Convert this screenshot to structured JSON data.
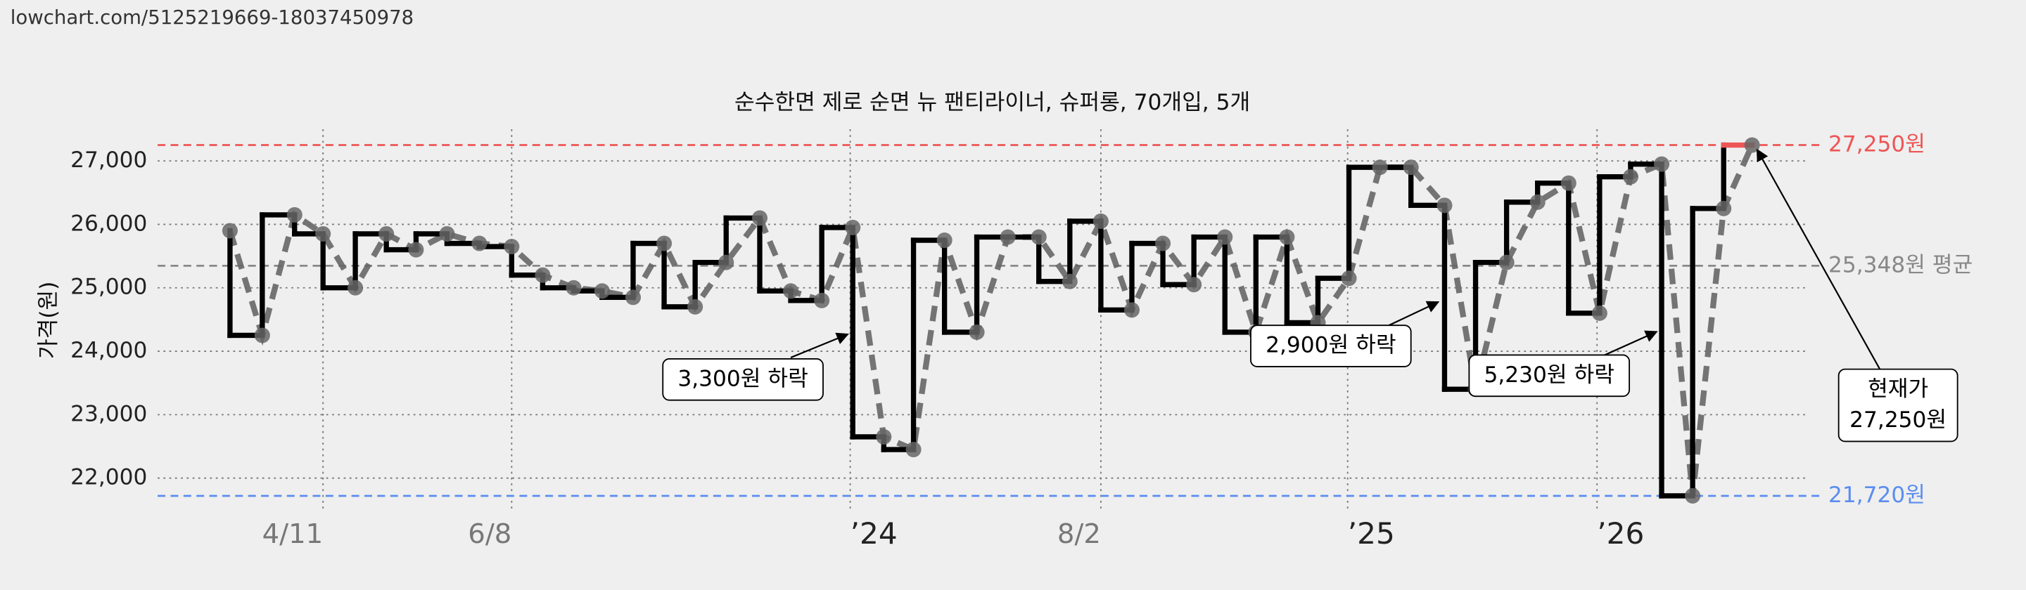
{
  "header": {
    "url": "lowchart.com/5125219669-18037450978"
  },
  "chart_data": {
    "type": "step-line",
    "title": "순수한면 제로 순면 뉴 팬티라이너, 슈퍼롱, 70개입, 5개",
    "y_label": "가격(원)",
    "x": [
      178,
      203,
      228,
      250,
      275,
      299,
      322,
      346,
      371,
      396,
      420,
      444,
      466,
      490,
      514,
      538,
      562,
      588,
      612,
      636,
      660,
      684,
      707,
      731,
      756,
      780,
      804,
      828,
      852,
      876,
      900,
      924,
      948,
      972,
      996,
      1020,
      1044,
      1068,
      1092,
      1118,
      1142,
      1166,
      1190,
      1214,
      1238,
      1262,
      1286,
      1310,
      1334,
      1356
    ],
    "series": [
      {
        "color": "#000000",
        "values": [
          25900,
          24250,
          26150,
          25850,
          25000,
          25850,
          25600,
          25850,
          25700,
          25650,
          25200,
          25000,
          24950,
          24850,
          25700,
          24700,
          25400,
          26100,
          24950,
          24800,
          25950,
          22650,
          22450,
          25750,
          24300,
          25800,
          25800,
          25100,
          26050,
          24650,
          25700,
          25050,
          25800,
          24300,
          25800,
          24450,
          25150,
          26900,
          26900,
          26300,
          23400,
          25400,
          26350,
          26650,
          24600,
          26750,
          26950,
          21720,
          26250,
          27250
        ]
      }
    ],
    "xlim": [
      122,
      1400
    ],
    "xticks": [
      {
        "value": 250,
        "label": "4/11"
      },
      {
        "value": 396,
        "label": "6/8"
      },
      {
        "value": 658,
        "label": "’24"
      },
      {
        "value": 852,
        "label": "8/2"
      },
      {
        "value": 1043,
        "label": "’25"
      },
      {
        "value": 1236,
        "label": "’26"
      }
    ],
    "ylim": [
      21500,
      27500
    ],
    "yticks": [
      {
        "value": 22000,
        "label": "22,000"
      },
      {
        "value": 23000,
        "label": "23,000"
      },
      {
        "value": 24000,
        "label": "24,000"
      },
      {
        "value": 25000,
        "label": "25,000"
      },
      {
        "value": 26000,
        "label": "26,000"
      },
      {
        "value": 27000,
        "label": "27,000"
      }
    ],
    "grid": true,
    "reference_lines": [
      {
        "value": 27250,
        "label": "27,250원",
        "color": "#ee5555"
      },
      {
        "value": 25348,
        "label": "25,348원 평균",
        "color": "#888888"
      },
      {
        "value": 21720,
        "label": "21,720원",
        "color": "#5b8def"
      }
    ],
    "annotations": [
      {
        "text": "3,300원 하락"
      },
      {
        "text": "2,900원 하락"
      },
      {
        "text": "5,230원 하락"
      },
      {
        "lines": [
          "현재가",
          "27,250원"
        ]
      }
    ]
  }
}
